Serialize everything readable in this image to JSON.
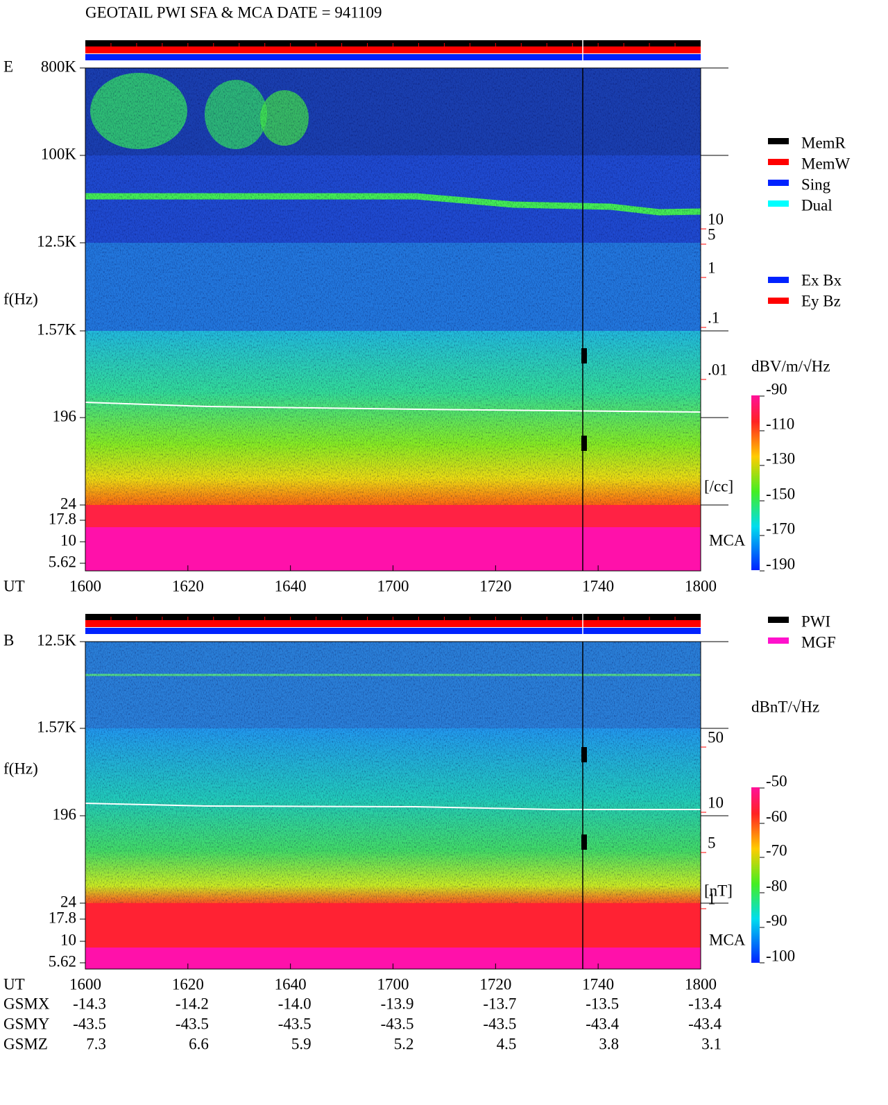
{
  "title": "GEOTAIL  PWI SFA & MCA   DATE = 941109",
  "panels": [
    {
      "label": "E",
      "y_label": "f(Hz)",
      "x_label": "UT",
      "yticks": [
        "800K",
        "100K",
        "12.5K",
        "1.57K",
        "196",
        "24",
        "17.8",
        "10",
        "5.62"
      ],
      "xticks": [
        "1600",
        "1620",
        "1640",
        "1700",
        "1720",
        "1740",
        "1800"
      ],
      "mca_label": "MCA",
      "aux_ticks": [
        "10",
        "5",
        "1",
        ".1",
        ".01"
      ],
      "aux_unit": "[/cc]",
      "colorbar_unit": "dBV/m/√Hz",
      "colorbar_ticks": [
        -90,
        -110,
        -130,
        -150,
        -170,
        -190
      ],
      "legend": [
        "MemR",
        "MemW",
        "Sing",
        "Dual"
      ],
      "legend2": [
        "Ex Bx",
        "Ey Bz"
      ]
    },
    {
      "label": "B",
      "y_label": "f(Hz)",
      "x_label": "UT",
      "yticks": [
        "12.5K",
        "1.57K",
        "196",
        "24",
        "17.8",
        "10",
        "5.62"
      ],
      "xticks": [
        "1600",
        "1620",
        "1640",
        "1700",
        "1720",
        "1740",
        "1800"
      ],
      "mca_label": "MCA",
      "aux_ticks": [
        "50",
        "10",
        "5",
        "1"
      ],
      "aux_unit": "[nT]",
      "colorbar_unit": "dBnT/√Hz",
      "colorbar_ticks": [
        -50,
        -60,
        -70,
        -80,
        -90,
        -100
      ],
      "legend": [
        "PWI",
        "MGF"
      ]
    }
  ],
  "orbit": [
    {
      "label": "GSMX",
      "values": [
        "-14.3",
        "-14.2",
        "-14.0",
        "-13.9",
        "-13.7",
        "-13.5",
        "-13.4"
      ]
    },
    {
      "label": "GSMY",
      "values": [
        "-43.5",
        "-43.5",
        "-43.5",
        "-43.5",
        "-43.5",
        "-43.4",
        "-43.4"
      ]
    },
    {
      "label": "GSMZ",
      "values": [
        "7.3",
        "6.6",
        "5.9",
        "5.2",
        "4.5",
        "3.8",
        "3.1"
      ]
    }
  ]
}
